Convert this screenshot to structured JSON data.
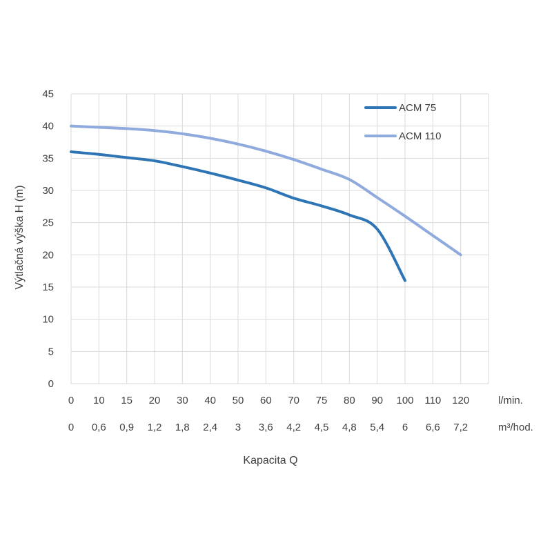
{
  "chart_data": {
    "type": "line",
    "title": "",
    "xlabel": "Kapacita Q",
    "ylabel": "Výtlačná výška H (m)",
    "ylim": [
      0,
      45
    ],
    "y_ticks": [
      "0",
      "5",
      "10",
      "15",
      "20",
      "25",
      "30",
      "35",
      "40",
      "45"
    ],
    "x_ticks_lmin": [
      "0",
      "10",
      "15",
      "20",
      "30",
      "40",
      "50",
      "60",
      "70",
      "75",
      "80",
      "90",
      "100",
      "110",
      "120"
    ],
    "x_unit_lmin": "l/min.",
    "x_ticks_m3h": [
      "0",
      "0,6",
      "0,9",
      "1,2",
      "1,8",
      "2,4",
      "3",
      "3,6",
      "4,2",
      "4,5",
      "4,8",
      "5,4",
      "6",
      "6,6",
      "7,2"
    ],
    "x_unit_m3h": "m³/hod.",
    "grid": true,
    "legend_position": "top-right",
    "series": [
      {
        "name": "ACM 75",
        "color": "#2e75b6",
        "x": [
          0,
          10,
          15,
          20,
          30,
          40,
          50,
          60,
          70,
          75,
          80,
          90,
          100
        ],
        "y": [
          36,
          35.6,
          35.1,
          34.6,
          33.7,
          32.7,
          31.6,
          30.4,
          28.8,
          27.6,
          26.2,
          24,
          16
        ]
      },
      {
        "name": "ACM 110",
        "color": "#8faadc",
        "x": [
          0,
          10,
          15,
          20,
          30,
          40,
          50,
          60,
          70,
          75,
          80,
          90,
          100,
          110,
          120
        ],
        "y": [
          40,
          39.8,
          39.6,
          39.3,
          38.8,
          38.1,
          37.2,
          36.1,
          34.8,
          33.3,
          31.7,
          28.9,
          26,
          23,
          20
        ]
      }
    ]
  }
}
